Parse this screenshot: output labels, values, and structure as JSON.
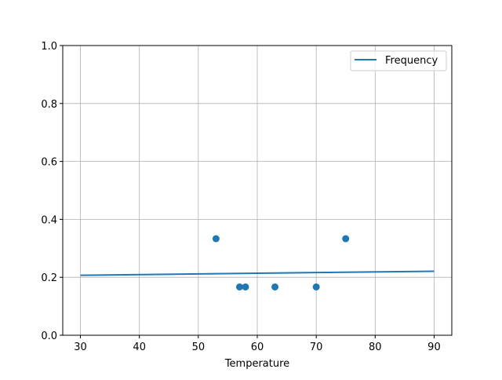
{
  "chart_data": {
    "type": "scatter",
    "title": "",
    "xlabel": "Temperature",
    "ylabel": "",
    "xlim": [
      27,
      93
    ],
    "ylim": [
      0,
      1
    ],
    "xticks": [
      30,
      40,
      50,
      60,
      70,
      80,
      90
    ],
    "yticks": [
      0.0,
      0.2,
      0.4,
      0.6,
      0.8,
      1.0
    ],
    "xtick_labels": [
      "30",
      "40",
      "50",
      "60",
      "70",
      "80",
      "90"
    ],
    "ytick_labels": [
      "0.0",
      "0.2",
      "0.4",
      "0.6",
      "0.8",
      "1.0"
    ],
    "grid": true,
    "legend_position": "top-right",
    "color": "#1f77b4",
    "scatter": {
      "x": [
        53,
        57,
        58,
        63,
        70,
        75
      ],
      "y": [
        0.3333,
        0.1667,
        0.1667,
        0.1667,
        0.1667,
        0.3333
      ]
    },
    "series": [
      {
        "name": "Frequency",
        "type": "line",
        "x": [
          30,
          90
        ],
        "y": [
          0.207,
          0.221
        ]
      }
    ]
  }
}
